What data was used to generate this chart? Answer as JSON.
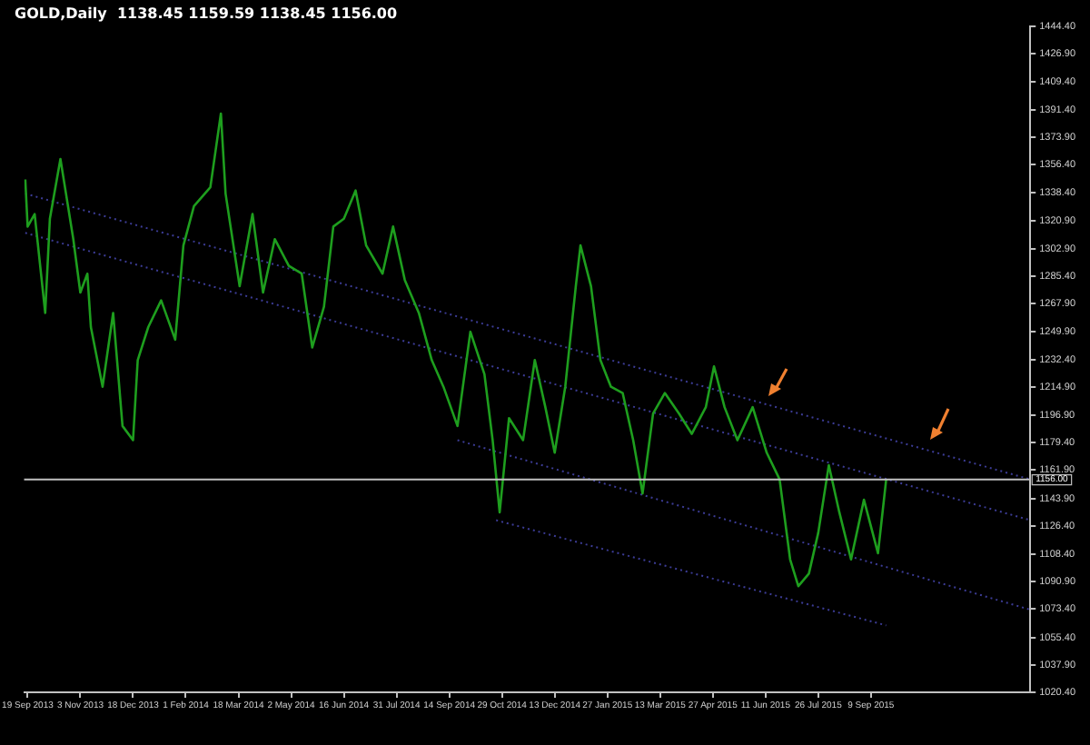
{
  "chart_data": {
    "type": "line",
    "title": "GOLD,Daily  1138.45 1159.59 1138.45 1156.00",
    "xlim": [
      "2013-09-16",
      "2016-01-23"
    ],
    "xticks": [
      {
        "value": "2013-09-19",
        "label": "19 Sep 2013"
      },
      {
        "value": "2013-11-03",
        "label": "3 Nov 2013"
      },
      {
        "value": "2013-12-18",
        "label": "18 Dec 2013"
      },
      {
        "value": "2014-02-01",
        "label": "1 Feb 2014"
      },
      {
        "value": "2014-03-18",
        "label": "18 Mar 2014"
      },
      {
        "value": "2014-05-02",
        "label": "2 May 2014"
      },
      {
        "value": "2014-06-16",
        "label": "16 Jun 2014"
      },
      {
        "value": "2014-07-31",
        "label": "31 Jul 2014"
      },
      {
        "value": "2014-09-14",
        "label": "14 Sep 2014"
      },
      {
        "value": "2014-10-29",
        "label": "29 Oct 2014"
      },
      {
        "value": "2014-12-13",
        "label": "13 Dec 2014"
      },
      {
        "value": "2015-01-27",
        "label": "27 Jan 2015"
      },
      {
        "value": "2015-03-13",
        "label": "13 Mar 2015"
      },
      {
        "value": "2015-04-27",
        "label": "27 Apr 2015"
      },
      {
        "value": "2015-06-11",
        "label": "11 Jun 2015"
      },
      {
        "value": "2015-07-26",
        "label": "26 Jul 2015"
      },
      {
        "value": "2015-09-09",
        "label": "9 Sep 2015"
      }
    ],
    "ylim": [
      1020.4,
      1444.4
    ],
    "yticks": [
      {
        "value": 1444.4,
        "label": "1444.40"
      },
      {
        "value": 1426.9,
        "label": "1426.90"
      },
      {
        "value": 1409.4,
        "label": "1409.40"
      },
      {
        "value": 1391.4,
        "label": "1391.40"
      },
      {
        "value": 1373.9,
        "label": "1373.90"
      },
      {
        "value": 1356.4,
        "label": "1356.40"
      },
      {
        "value": 1338.4,
        "label": "1338.40"
      },
      {
        "value": 1320.9,
        "label": "1320.90"
      },
      {
        "value": 1302.9,
        "label": "1302.90"
      },
      {
        "value": 1285.4,
        "label": "1285.40"
      },
      {
        "value": 1267.9,
        "label": "1267.90"
      },
      {
        "value": 1249.9,
        "label": "1249.90"
      },
      {
        "value": 1232.4,
        "label": "1232.40"
      },
      {
        "value": 1214.9,
        "label": "1214.90"
      },
      {
        "value": 1196.9,
        "label": "1196.90"
      },
      {
        "value": 1179.4,
        "label": "1179.40"
      },
      {
        "value": 1161.9,
        "label": "1161.90"
      },
      {
        "value": 1143.9,
        "label": "1143.90"
      },
      {
        "value": 1126.4,
        "label": "1126.40"
      },
      {
        "value": 1108.4,
        "label": "1108.40"
      },
      {
        "value": 1090.9,
        "label": "1090.90"
      },
      {
        "value": 1073.4,
        "label": "1073.40"
      },
      {
        "value": 1055.4,
        "label": "1055.40"
      },
      {
        "value": 1037.9,
        "label": "1037.90"
      },
      {
        "value": 1020.4,
        "label": "1020.40"
      }
    ],
    "grid": false,
    "legend": false,
    "marker": "none",
    "ref_lines": [
      {
        "axis": "y",
        "value": 1156.0,
        "label": "1156.00",
        "color": "#c0c0c0",
        "line_style": "solid"
      }
    ],
    "series": [
      {
        "type": "line",
        "color": "#1e9e1e",
        "line_style": "solid",
        "x": [
          "2013-09-17",
          "2013-09-19",
          "2013-09-25",
          "2013-10-04",
          "2013-10-08",
          "2013-10-17",
          "2013-10-28",
          "2013-11-03",
          "2013-11-09",
          "2013-11-12",
          "2013-11-22",
          "2013-12-01",
          "2013-12-09",
          "2013-12-18",
          "2013-12-22",
          "2013-12-31",
          "2014-01-11",
          "2014-01-23",
          "2014-01-30",
          "2014-02-08",
          "2014-02-22",
          "2014-03-03",
          "2014-03-07",
          "2014-03-19",
          "2014-03-30",
          "2014-04-08",
          "2014-04-18",
          "2014-04-30",
          "2014-05-11",
          "2014-05-20",
          "2014-05-30",
          "2014-06-07",
          "2014-06-16",
          "2014-06-26",
          "2014-07-05",
          "2014-07-19",
          "2014-07-28",
          "2014-08-07",
          "2014-08-19",
          "2014-08-30",
          "2014-09-09",
          "2014-09-21",
          "2014-10-02",
          "2014-10-14",
          "2014-10-21",
          "2014-10-27",
          "2014-11-04",
          "2014-11-16",
          "2014-11-26",
          "2014-12-05",
          "2014-12-13",
          "2014-12-22",
          "2014-12-31",
          "2015-01-04",
          "2015-01-13",
          "2015-01-21",
          "2015-01-30",
          "2015-02-09",
          "2015-02-18",
          "2015-02-26",
          "2015-03-07",
          "2015-03-17",
          "2015-03-29",
          "2015-04-09",
          "2015-04-21",
          "2015-04-28",
          "2015-05-07",
          "2015-05-18",
          "2015-05-31",
          "2015-06-12",
          "2015-06-23",
          "2015-07-02",
          "2015-07-09",
          "2015-07-18",
          "2015-07-26",
          "2015-08-04",
          "2015-08-13",
          "2015-08-23",
          "2015-09-03",
          "2015-09-15",
          "2015-09-22"
        ],
        "values": [
          1347,
          1317,
          1325,
          1262,
          1322,
          1360,
          1309,
          1275,
          1287,
          1253,
          1215,
          1262,
          1190,
          1181,
          1232,
          1253,
          1270,
          1245,
          1305,
          1330,
          1342,
          1389,
          1338,
          1279,
          1325,
          1275,
          1309,
          1292,
          1287,
          1240,
          1266,
          1317,
          1322,
          1340,
          1305,
          1287,
          1317,
          1283,
          1262,
          1232,
          1215,
          1190,
          1250,
          1223,
          1181,
          1135,
          1195,
          1181,
          1232,
          1202,
          1173,
          1215,
          1279,
          1305,
          1279,
          1232,
          1215,
          1211,
          1181,
          1147,
          1198,
          1211,
          1198,
          1185,
          1202,
          1228,
          1202,
          1181,
          1202,
          1173,
          1156,
          1105,
          1088,
          1096,
          1122,
          1165,
          1135,
          1105,
          1143,
          1109,
          1156
        ]
      },
      {
        "type": "line",
        "color": "#3c3c96",
        "line_style": "dotted",
        "x": [
          "2013-09-17",
          "2016-01-23"
        ],
        "values": [
          1338,
          1156
        ]
      },
      {
        "type": "line",
        "color": "#3c3c96",
        "line_style": "dotted",
        "x": [
          "2013-09-17",
          "2016-01-23"
        ],
        "values": [
          1313,
          1130
        ]
      },
      {
        "type": "line",
        "color": "#3c3c96",
        "line_style": "dotted",
        "x": [
          "2014-09-21",
          "2016-01-23"
        ],
        "values": [
          1181,
          1073
        ]
      },
      {
        "type": "line",
        "color": "#3c3c96",
        "line_style": "dotted",
        "x": [
          "2014-10-24",
          "2015-09-22"
        ],
        "values": [
          1130,
          1063
        ]
      }
    ]
  }
}
